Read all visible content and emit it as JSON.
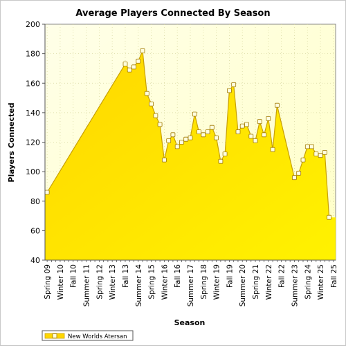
{
  "chart_data": {
    "type": "area",
    "title": "Average Players Connected By Season",
    "xlabel": "Season",
    "ylabel": "Players Connected",
    "ylim": [
      40,
      200
    ],
    "yticks": [
      40,
      60,
      80,
      100,
      120,
      140,
      160,
      180,
      200
    ],
    "grid": true,
    "legend_position": "bottom-left",
    "colors": {
      "fill": "#ffd700",
      "fill_light": "#fff200",
      "line": "#c8a000",
      "plot_bg": "#ffffd8",
      "point_fill": "#ffffe0",
      "point_stroke": "#a07800"
    },
    "x_tick_labels": [
      "Spring 09",
      "Winter 10",
      "Fall 10",
      "Summer 11",
      "Spring 12",
      "Winter 13",
      "Fall 13",
      "Summer 14",
      "Spring 15",
      "Winter 16",
      "Fall 16",
      "Summer 17",
      "Spring 18",
      "Winter 19",
      "Fall 19",
      "Summer 20",
      "Spring 21",
      "Winter 22",
      "Fall 22",
      "Summer 23",
      "Spring 24",
      "Winter 25",
      "Fall 25"
    ],
    "x_count": 67,
    "series": [
      {
        "name": "New Worlds Atersan",
        "points": [
          [
            0,
            86
          ],
          [
            18,
            173
          ],
          [
            19,
            169
          ],
          [
            20,
            171
          ],
          [
            21,
            175
          ],
          [
            22,
            182
          ],
          [
            23,
            153
          ],
          [
            24,
            146
          ],
          [
            25,
            138
          ],
          [
            26,
            132
          ],
          [
            27,
            108
          ],
          [
            28,
            121
          ],
          [
            29,
            125
          ],
          [
            30,
            117
          ],
          [
            31,
            120
          ],
          [
            32,
            122
          ],
          [
            33,
            123
          ],
          [
            34,
            139
          ],
          [
            35,
            127
          ],
          [
            36,
            125
          ],
          [
            37,
            127
          ],
          [
            38,
            130
          ],
          [
            39,
            123
          ],
          [
            40,
            107
          ],
          [
            41,
            112
          ],
          [
            42,
            155
          ],
          [
            43,
            159
          ],
          [
            44,
            127
          ],
          [
            45,
            131
          ],
          [
            46,
            132
          ],
          [
            47,
            124
          ],
          [
            48,
            121
          ],
          [
            49,
            134
          ],
          [
            50,
            125
          ],
          [
            51,
            136
          ],
          [
            52,
            115
          ],
          [
            53,
            145
          ],
          [
            57,
            96
          ],
          [
            58,
            99
          ],
          [
            59,
            108
          ],
          [
            60,
            117
          ],
          [
            61,
            117
          ],
          [
            62,
            112
          ],
          [
            63,
            111
          ],
          [
            64,
            113
          ],
          [
            65,
            69
          ]
        ]
      }
    ]
  }
}
